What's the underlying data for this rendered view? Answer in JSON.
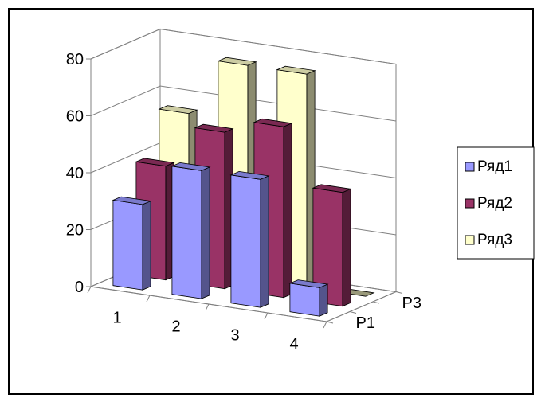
{
  "chart_data": {
    "type": "bar",
    "categories": [
      "1",
      "2",
      "3",
      "4"
    ],
    "series_labels": [
      "P1",
      "",
      "P3"
    ],
    "series": [
      {
        "name": "Ряд1",
        "values": [
          30,
          45,
          45,
          10
        ],
        "color": "#9999ff"
      },
      {
        "name": "Ряд2",
        "values": [
          40,
          55,
          60,
          40
        ],
        "color": "#993366"
      },
      {
        "name": "Ряд3",
        "values": [
          55,
          75,
          75,
          0
        ],
        "color": "#ffffcc"
      }
    ],
    "yticks": [
      "0",
      "20",
      "40",
      "60",
      "80"
    ],
    "ylim": [
      0,
      80
    ],
    "grid": true,
    "legend_position": "right"
  }
}
